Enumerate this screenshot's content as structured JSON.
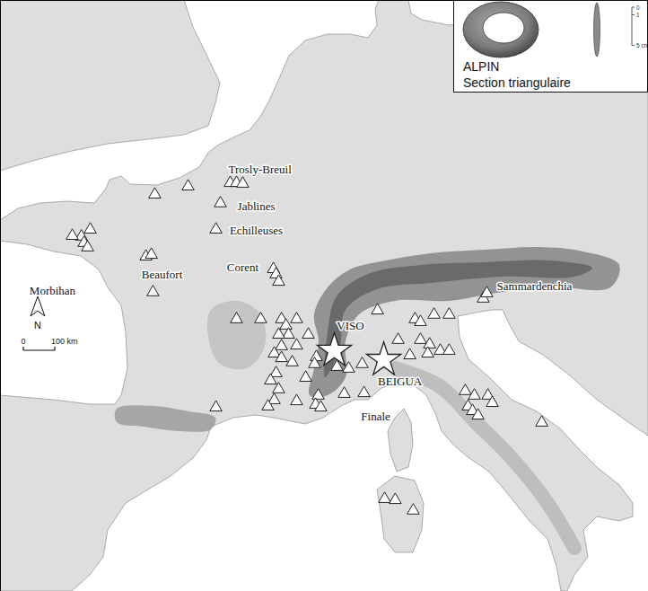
{
  "chart_data": {
    "type": "map",
    "xlim": [
      -5.74,
      19.16
    ],
    "ylim": [
      37.8,
      54.67
    ],
    "tick_labels": false,
    "sites": {
      "marker": "triangle",
      "color": "#ffffff",
      "lon": [
        0.19,
        1.47,
        3.09,
        3.33,
        3.57,
        2.71,
        2.54,
        -2.29,
        -2.63,
        -2.98,
        -2.53,
        -2.39,
        -0.15,
        0.06,
        0.12,
        4.75,
        4.85,
        4.95,
        3.33,
        4.26,
        5.06,
        5.64,
        5.23,
        5.33,
        4.95,
        6.09,
        5.06,
        5.64,
        4.78,
        5.06,
        5.47,
        6.4,
        6.33,
        7.19,
        7.64,
        8.16,
        5.99,
        4.85,
        4.64,
        4.95,
        4.78,
        4.54,
        5.64,
        6.47,
        6.37,
        6.57,
        2.54,
        7.47,
        8.75,
        10.19,
        10.4,
        10.92,
        11.5,
        9.54,
        10.4,
        10.75,
        11.16,
        11.5,
        9.99,
        10.68,
        8.23,
        12.81,
        12.95,
        12.12,
        12.47,
        12.99,
        12.23,
        12.4,
        12.61,
        13.16,
        15.06,
        9.02,
        9.43,
        10.12
      ],
      "lat": [
        49.13,
        49.36,
        49.46,
        49.46,
        49.44,
        48.88,
        48.13,
        48.13,
        47.93,
        47.95,
        47.75,
        47.62,
        47.36,
        47.41,
        46.34,
        47.0,
        46.85,
        46.64,
        45.57,
        45.57,
        45.57,
        45.57,
        45.39,
        45.13,
        45.13,
        45.13,
        44.8,
        44.82,
        44.59,
        44.46,
        44.34,
        44.49,
        44.29,
        44.21,
        44.16,
        44.29,
        43.9,
        44.03,
        43.82,
        43.57,
        43.26,
        43.08,
        43.23,
        43.39,
        43.13,
        43.05,
        43.05,
        43.44,
        45.82,
        45.57,
        45.49,
        45.7,
        45.7,
        44.98,
        44.98,
        44.85,
        44.67,
        44.67,
        44.54,
        44.59,
        43.46,
        46.16,
        46.31,
        43.52,
        43.39,
        43.39,
        43.08,
        42.95,
        42.82,
        43.18,
        42.62,
        40.44,
        40.41,
        40.11
      ]
    },
    "sources": {
      "marker": "star",
      "color": "#ffffff",
      "names": [
        "VISO",
        "BEIGUA"
      ],
      "lon": [
        7.09,
        8.99
      ],
      "lat": [
        44.67,
        44.41
      ]
    },
    "places": {
      "names": [
        "Trosly-Breuil",
        "Jablines",
        "Echilleuses",
        "Corent",
        "Beaufort",
        "Morbihan",
        "Finale",
        "Sammardenchia"
      ],
      "lon": [
        4.23,
        4.09,
        4.09,
        3.57,
        0.47,
        -3.74,
        8.68,
        14.78
      ],
      "lat": [
        49.85,
        48.8,
        48.11,
        47.05,
        46.85,
        46.39,
        42.8,
        46.52
      ]
    },
    "north_arrow": "N",
    "scale_bar": {
      "ticks": [
        {
          "value": 0,
          "label": "0"
        },
        {
          "value": 100,
          "label": "100 km"
        }
      ]
    },
    "inset": {
      "annotations": [
        "ALPIN",
        "Section triangulaire"
      ],
      "scale": {
        "ticks": [
          {
            "value": 0,
            "label": "0"
          },
          {
            "value": 1,
            "label": "1"
          },
          {
            "value": 5,
            "label": "5 cm"
          }
        ]
      }
    }
  }
}
